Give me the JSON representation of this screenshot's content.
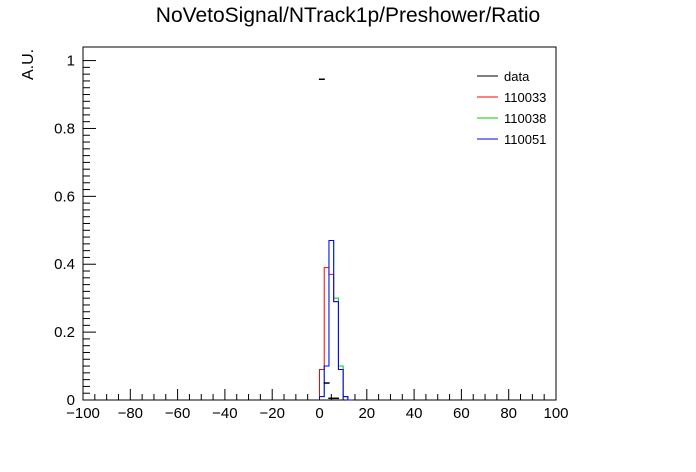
{
  "chart_data": {
    "type": "histogram",
    "title": "NoVetoSignal/NTrack1p/Preshower/Ratio",
    "xlabel": "",
    "ylabel": "A.U.",
    "xlim": [
      -100,
      100
    ],
    "ylim": [
      0,
      1.04
    ],
    "grid": false,
    "legend_position": "top-right",
    "xticks": [
      -100,
      -80,
      -60,
      -40,
      -20,
      0,
      20,
      40,
      60,
      80,
      100
    ],
    "yticks": [
      0,
      0.2,
      0.4,
      0.6,
      0.8,
      1
    ],
    "bin_edges": [
      0,
      2,
      4,
      6,
      8,
      10,
      12,
      14
    ],
    "series": [
      {
        "name": "data",
        "color": "#000000",
        "style": "points",
        "x": [
          1,
          3,
          5,
          7
        ],
        "y": [
          0.945,
          0.05,
          0.005,
          0.005
        ]
      },
      {
        "name": "110033",
        "color": "#ff0000",
        "style": "step",
        "values": [
          0.09,
          0.39,
          0.37,
          0.29,
          0.09,
          0.01,
          0.0
        ]
      },
      {
        "name": "110038",
        "color": "#00cc00",
        "style": "step",
        "values": [
          0.01,
          0.1,
          0.47,
          0.3,
          0.1,
          0.01,
          0.0
        ]
      },
      {
        "name": "110051",
        "color": "#0000ff",
        "style": "step",
        "values": [
          0.01,
          0.1,
          0.47,
          0.29,
          0.09,
          0.01,
          0.0
        ]
      }
    ]
  }
}
